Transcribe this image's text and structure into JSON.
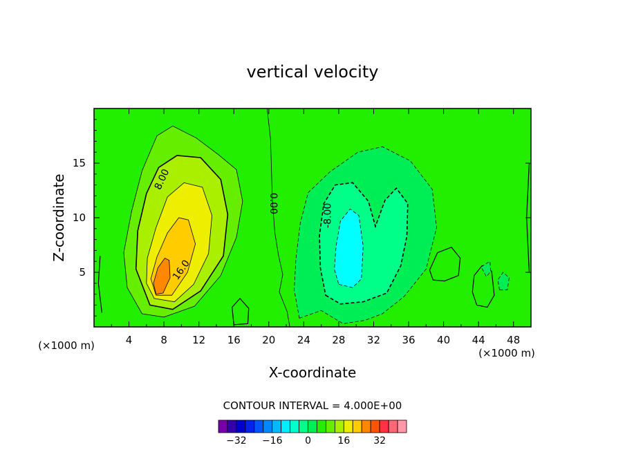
{
  "chart_data": {
    "type": "contour",
    "title": "vertical velocity",
    "xlabel": "X-coordinate",
    "ylabel": "Z-coordinate",
    "x_unit": "(×1000 m)",
    "y_unit": "(×1000 m)",
    "xlim": [
      0,
      50
    ],
    "ylim": [
      0,
      20
    ],
    "x_ticks": [
      4,
      8,
      12,
      16,
      20,
      24,
      28,
      32,
      36,
      40,
      44,
      48
    ],
    "y_ticks": [
      5,
      10,
      15
    ],
    "contour_interval_label": "CONTOUR INTERVAL = 4.000E+00",
    "contour_labels": [
      {
        "text": "8.00",
        "x": 7.8,
        "z": 13.5,
        "angle": -65
      },
      {
        "text": "16.0",
        "x": 10.0,
        "z": 5.2,
        "angle": -55
      },
      {
        "text": "0.00",
        "x": 20.5,
        "z": 11.3,
        "angle": 90
      },
      {
        "text": "-8.00",
        "x": 26.8,
        "z": 10.2,
        "angle": -90
      }
    ],
    "colorbar": {
      "tick_labels": [
        -32,
        -16,
        0,
        16,
        32
      ],
      "levels": [
        -36,
        -32,
        -28,
        -24,
        -20,
        -16,
        -12,
        -8,
        -4,
        0,
        4,
        8,
        12,
        16,
        20,
        24,
        28,
        32,
        36
      ],
      "colors": [
        "#7700aa",
        "#3300aa",
        "#0000cc",
        "#0022ee",
        "#0055ff",
        "#0088ff",
        "#00bbff",
        "#00eeff",
        "#00ffcc",
        "#00ff88",
        "#00ee55",
        "#22ee00",
        "#66ee00",
        "#aaee00",
        "#eeee00",
        "#ffcc00",
        "#ff8800",
        "#ff5500",
        "#ff3344",
        "#ff6677",
        "#ff99aa"
      ]
    },
    "fields": {
      "background_color": "#22ee00",
      "updraft": {
        "center_x": 7.8,
        "center_z": 4.5,
        "max_value": 20,
        "colors_by_level": {
          "4": "#66ee00",
          "8": "#aaee00",
          "12": "#eeee00",
          "16": "#ffcc00",
          "20": "#ff8800"
        }
      },
      "downdraft": {
        "center_x": 29.5,
        "center_z": 6.5,
        "min_value": -12,
        "colors_by_level": {
          "-4": "#00ee55",
          "-8": "#00ff88",
          "-12": "#00ffff"
        }
      }
    }
  }
}
